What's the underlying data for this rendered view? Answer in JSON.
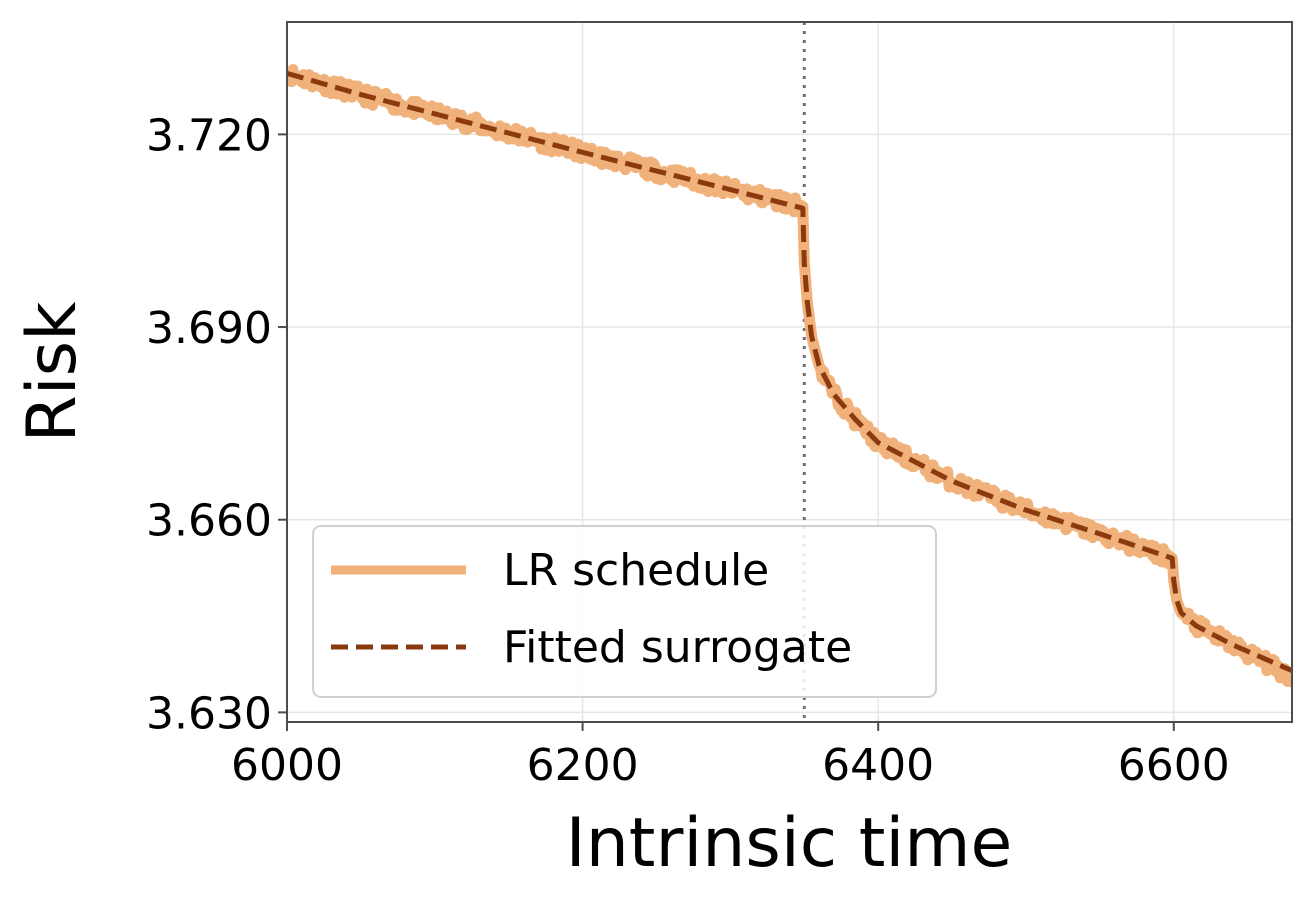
{
  "chart_data": {
    "type": "line",
    "xlabel": "Intrinsic time",
    "ylabel": "Risk",
    "xlim": [
      6000,
      6680
    ],
    "ylim": [
      3.6285,
      3.7375
    ],
    "xticks": [
      6000,
      6200,
      6400,
      6600
    ],
    "xtick_labels": [
      "6000",
      "6200",
      "6400",
      "6600"
    ],
    "yticks": [
      3.63,
      3.66,
      3.69,
      3.72
    ],
    "ytick_labels": [
      "3.630",
      "3.660",
      "3.690",
      "3.720"
    ],
    "grid": true,
    "vline_x": 6350,
    "legend_position": "lower-left",
    "series": [
      {
        "name": "LR schedule",
        "color": "#f0b27a",
        "style": "solid",
        "noise_amplitude": 0.0012,
        "x": [
          6000,
          6050,
          6100,
          6150,
          6200,
          6250,
          6300,
          6349,
          6350,
          6352,
          6355,
          6360,
          6370,
          6385,
          6400,
          6450,
          6500,
          6550,
          6599,
          6600,
          6602,
          6605,
          6615,
          6640,
          6680
        ],
        "y": [
          3.7295,
          3.7262,
          3.7232,
          3.7202,
          3.7172,
          3.7143,
          3.7114,
          3.7088,
          3.7,
          3.694,
          3.6885,
          3.684,
          3.6795,
          3.6755,
          3.672,
          3.666,
          3.6615,
          3.6578,
          3.654,
          3.6505,
          3.6475,
          3.6455,
          3.6435,
          3.6405,
          3.6355
        ]
      },
      {
        "name": "Fitted surrogate",
        "color": "#8b3a0f",
        "style": "dashed",
        "x": [
          6000,
          6050,
          6100,
          6150,
          6200,
          6250,
          6300,
          6349,
          6350,
          6352,
          6355,
          6360,
          6370,
          6385,
          6400,
          6450,
          6500,
          6550,
          6599,
          6600,
          6602,
          6605,
          6615,
          6640,
          6680
        ],
        "y": [
          3.7295,
          3.7262,
          3.7232,
          3.7202,
          3.7172,
          3.7143,
          3.7114,
          3.7085,
          3.7,
          3.694,
          3.6885,
          3.684,
          3.6795,
          3.6755,
          3.672,
          3.666,
          3.6615,
          3.6578,
          3.654,
          3.6505,
          3.6475,
          3.6455,
          3.6435,
          3.6405,
          3.6365
        ]
      }
    ]
  }
}
